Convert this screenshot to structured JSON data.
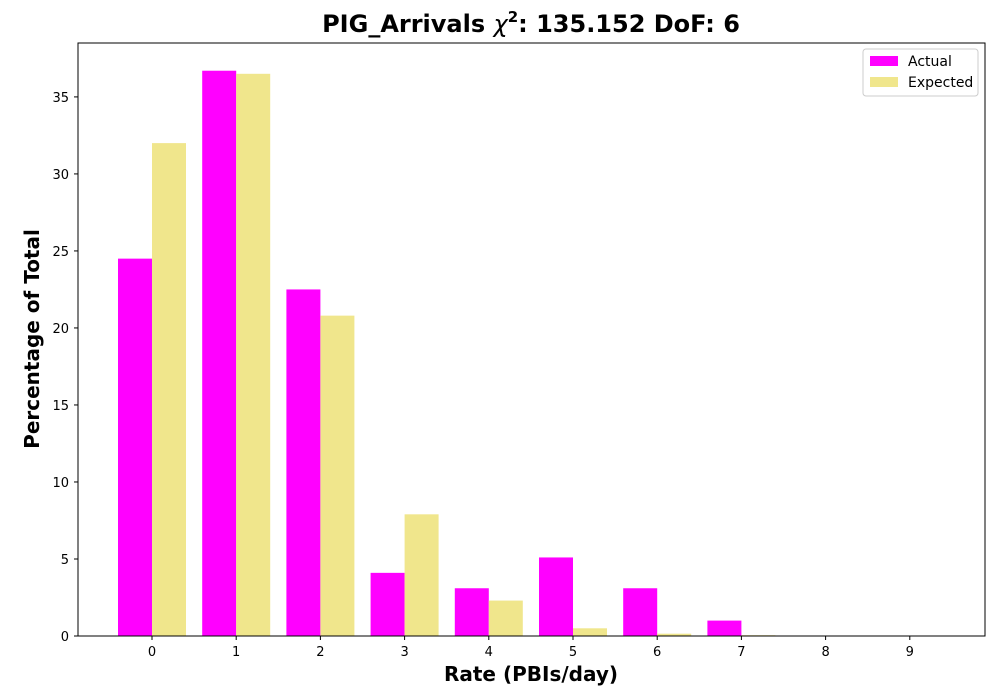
{
  "chart_data": {
    "type": "bar",
    "title_prefix": "PIG_Arrivals ",
    "title_chi": "χ",
    "title_sup": "2",
    "title_suffix": ": 135.152 DoF: 6",
    "xlabel": "Rate (PBIs/day)",
    "ylabel": "Percentage of Total",
    "categories": [
      "0",
      "1",
      "2",
      "3",
      "4",
      "5",
      "6",
      "7",
      "8",
      "9"
    ],
    "series": [
      {
        "name": "Actual",
        "color": "#ff00ff",
        "values": [
          24.5,
          36.7,
          22.5,
          4.1,
          3.1,
          5.1,
          3.1,
          1.0,
          0,
          0
        ]
      },
      {
        "name": "Expected",
        "color": "#f0e68c",
        "values": [
          32.0,
          36.5,
          20.8,
          7.9,
          2.3,
          0.5,
          0.15,
          0.05,
          0,
          0
        ]
      }
    ],
    "ylim": [
      0,
      38.5
    ],
    "yticks": [
      0,
      5,
      10,
      15,
      20,
      25,
      30,
      35
    ],
    "grid": false,
    "legend_position": "top-right"
  }
}
